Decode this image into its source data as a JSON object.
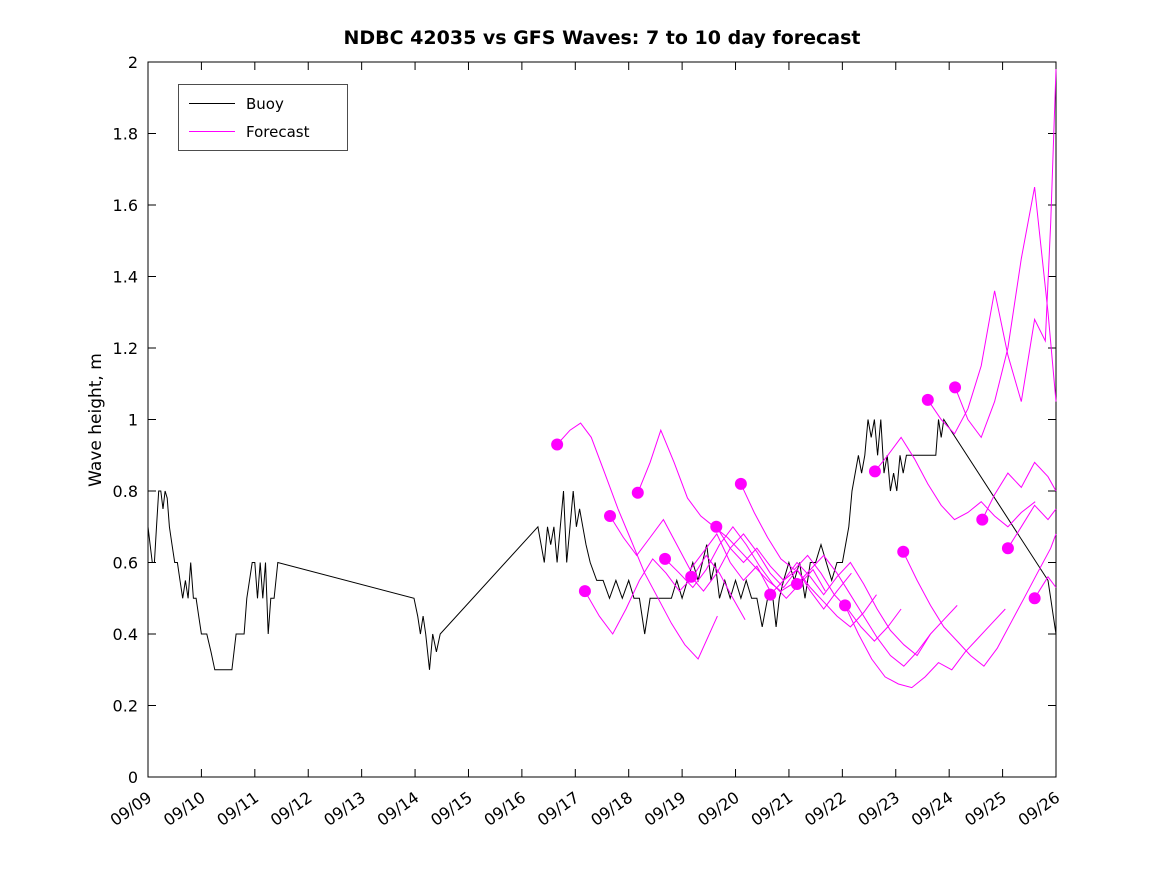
{
  "figure": {
    "background": "#ffffff"
  },
  "chart_data": {
    "type": "line",
    "title": "NDBC 42035 vs GFS Waves: 7 to 10 day forecast",
    "xlabel": "",
    "ylabel": "Wave height, m",
    "ylim": [
      0,
      2
    ],
    "xlim_days": [
      0,
      17
    ],
    "grid": false,
    "x_tick_labels": [
      "09/09",
      "09/10",
      "09/11",
      "09/12",
      "09/13",
      "09/14",
      "09/15",
      "09/16",
      "09/17",
      "09/18",
      "09/19",
      "09/20",
      "09/21",
      "09/22",
      "09/23",
      "09/24",
      "09/25",
      "09/26"
    ],
    "y_tick_values": [
      0,
      0.2,
      0.4,
      0.6,
      0.8,
      1,
      1.2,
      1.4,
      1.6,
      1.8,
      2
    ],
    "y_tick_labels": [
      "0",
      "0.2",
      "0.4",
      "0.6",
      "0.8",
      "1",
      "1.2",
      "1.4",
      "1.6",
      "1.8",
      "2"
    ],
    "legend": {
      "position": "top-left",
      "entries": [
        {
          "label": "Buoy",
          "color": "#000000"
        },
        {
          "label": "Forecast",
          "color": "#ff00ff"
        }
      ]
    },
    "colors": {
      "buoy": "#000000",
      "forecast": "#ff00ff"
    },
    "marker": "filled-circle",
    "buoy": {
      "name": "Buoy",
      "x": [
        0.0,
        0.04,
        0.08,
        0.12,
        0.16,
        0.2,
        0.24,
        0.28,
        0.32,
        0.36,
        0.4,
        0.45,
        0.5,
        0.55,
        0.6,
        0.65,
        0.7,
        0.75,
        0.8,
        0.85,
        0.9,
        0.95,
        1.0,
        1.05,
        1.1,
        1.18,
        1.25,
        1.35,
        1.45,
        1.57,
        1.65,
        1.72,
        1.8,
        1.85,
        1.9,
        1.95,
        2.0,
        2.05,
        2.1,
        2.15,
        2.2,
        2.25,
        2.3,
        2.36,
        2.43,
        4.98,
        5.05,
        5.1,
        5.15,
        5.2,
        5.27,
        5.33,
        5.4,
        5.47,
        7.3,
        7.36,
        7.42,
        7.48,
        7.54,
        7.6,
        7.66,
        7.72,
        7.78,
        7.84,
        7.9,
        7.96,
        8.02,
        8.08,
        8.14,
        8.2,
        8.28,
        8.4,
        8.52,
        8.64,
        8.76,
        8.88,
        9.0,
        9.1,
        9.2,
        9.3,
        9.4,
        9.5,
        9.6,
        9.7,
        9.8,
        9.9,
        10.0,
        10.1,
        10.2,
        10.3,
        10.38,
        10.46,
        10.54,
        10.62,
        10.7,
        10.8,
        10.9,
        11.0,
        11.1,
        11.2,
        11.3,
        11.4,
        11.5,
        11.6,
        11.7,
        11.76,
        11.82,
        11.9,
        12.0,
        12.1,
        12.2,
        12.3,
        12.4,
        12.5,
        12.6,
        12.7,
        12.8,
        12.9,
        13.0,
        13.06,
        13.12,
        13.18,
        13.24,
        13.3,
        13.36,
        13.42,
        13.48,
        13.54,
        13.6,
        13.66,
        13.72,
        13.78,
        13.84,
        13.9,
        13.96,
        14.02,
        14.08,
        14.14,
        14.2,
        14.4,
        14.6,
        14.75,
        14.8,
        14.85,
        14.9,
        16.85,
        16.9,
        16.95,
        17.0
      ],
      "y": [
        0.7,
        0.65,
        0.6,
        0.6,
        0.7,
        0.8,
        0.8,
        0.75,
        0.8,
        0.78,
        0.7,
        0.65,
        0.6,
        0.6,
        0.55,
        0.5,
        0.55,
        0.5,
        0.6,
        0.5,
        0.5,
        0.45,
        0.4,
        0.4,
        0.4,
        0.35,
        0.3,
        0.3,
        0.3,
        0.3,
        0.4,
        0.4,
        0.4,
        0.5,
        0.55,
        0.6,
        0.6,
        0.5,
        0.6,
        0.5,
        0.6,
        0.4,
        0.5,
        0.5,
        0.6,
        0.5,
        0.45,
        0.4,
        0.45,
        0.4,
        0.3,
        0.4,
        0.35,
        0.4,
        0.7,
        0.65,
        0.6,
        0.7,
        0.65,
        0.7,
        0.6,
        0.7,
        0.8,
        0.6,
        0.7,
        0.8,
        0.7,
        0.75,
        0.7,
        0.65,
        0.6,
        0.55,
        0.55,
        0.5,
        0.55,
        0.5,
        0.55,
        0.5,
        0.5,
        0.4,
        0.5,
        0.5,
        0.5,
        0.5,
        0.5,
        0.55,
        0.5,
        0.55,
        0.6,
        0.55,
        0.6,
        0.65,
        0.55,
        0.6,
        0.5,
        0.55,
        0.5,
        0.55,
        0.5,
        0.55,
        0.5,
        0.5,
        0.42,
        0.5,
        0.5,
        0.42,
        0.5,
        0.55,
        0.6,
        0.55,
        0.6,
        0.5,
        0.6,
        0.6,
        0.65,
        0.6,
        0.55,
        0.6,
        0.6,
        0.65,
        0.7,
        0.8,
        0.85,
        0.9,
        0.85,
        0.9,
        1.0,
        0.95,
        1.0,
        0.9,
        1.0,
        0.85,
        0.9,
        0.8,
        0.85,
        0.8,
        0.9,
        0.85,
        0.9,
        0.9,
        0.9,
        0.9,
        1.0,
        0.95,
        1.0,
        0.55,
        0.5,
        0.45,
        0.4
      ]
    },
    "forecast": {
      "name": "Forecast",
      "runs": [
        {
          "x": [
            7.66,
            7.9,
            8.1,
            8.3,
            8.55,
            8.8,
            9.05,
            9.3,
            9.55,
            9.8,
            10.05,
            10.3,
            10.66
          ],
          "y": [
            0.93,
            0.97,
            0.99,
            0.95,
            0.85,
            0.75,
            0.66,
            0.57,
            0.5,
            0.43,
            0.37,
            0.33,
            0.45
          ]
        },
        {
          "x": [
            8.18,
            8.45,
            8.7,
            8.95,
            9.2,
            9.45,
            9.7,
            9.95,
            10.2,
            10.45,
            10.7,
            10.95,
            11.18
          ],
          "y": [
            0.52,
            0.45,
            0.4,
            0.47,
            0.55,
            0.61,
            0.57,
            0.52,
            0.56,
            0.62,
            0.57,
            0.5,
            0.44
          ]
        },
        {
          "x": [
            8.65,
            8.9,
            9.15,
            9.4,
            9.65,
            9.9,
            10.15,
            10.4,
            10.65,
            10.9,
            11.15,
            11.4,
            11.65
          ],
          "y": [
            0.73,
            0.67,
            0.62,
            0.67,
            0.72,
            0.65,
            0.58,
            0.63,
            0.68,
            0.6,
            0.55,
            0.59,
            0.52
          ]
        },
        {
          "x": [
            9.17,
            9.4,
            9.6,
            9.85,
            10.1,
            10.35,
            10.6,
            10.85,
            11.1,
            11.35,
            11.6,
            11.85,
            12.17
          ],
          "y": [
            0.795,
            0.88,
            0.97,
            0.88,
            0.78,
            0.73,
            0.7,
            0.67,
            0.63,
            0.59,
            0.55,
            0.52,
            0.55
          ]
        },
        {
          "x": [
            9.68,
            9.95,
            10.2,
            10.45,
            10.7,
            10.95,
            11.2,
            11.45,
            11.7,
            11.95,
            12.2,
            12.45,
            12.68
          ],
          "y": [
            0.61,
            0.57,
            0.53,
            0.58,
            0.65,
            0.7,
            0.65,
            0.59,
            0.54,
            0.5,
            0.54,
            0.58,
            0.52
          ]
        },
        {
          "x": [
            10.17,
            10.4,
            10.65,
            10.9,
            11.15,
            11.4,
            11.65,
            11.9,
            12.15,
            12.4,
            12.65,
            12.9,
            13.17
          ],
          "y": [
            0.56,
            0.52,
            0.57,
            0.64,
            0.68,
            0.63,
            0.57,
            0.53,
            0.58,
            0.52,
            0.47,
            0.52,
            0.57
          ]
        },
        {
          "x": [
            10.64,
            10.9,
            11.15,
            11.4,
            11.65,
            11.9,
            12.15,
            12.4,
            12.65,
            12.9,
            13.15,
            13.4,
            13.64
          ],
          "y": [
            0.7,
            0.64,
            0.6,
            0.64,
            0.59,
            0.55,
            0.58,
            0.53,
            0.49,
            0.45,
            0.42,
            0.46,
            0.51
          ]
        },
        {
          "x": [
            11.1,
            11.35,
            11.6,
            11.85,
            12.1,
            12.35,
            12.6,
            12.85,
            13.1,
            13.35,
            13.6,
            13.85,
            14.1
          ],
          "y": [
            0.82,
            0.74,
            0.67,
            0.61,
            0.58,
            0.62,
            0.57,
            0.51,
            0.47,
            0.42,
            0.38,
            0.42,
            0.47
          ]
        },
        {
          "x": [
            11.65,
            11.9,
            12.15,
            12.4,
            12.65,
            12.9,
            13.15,
            13.4,
            13.65,
            13.9,
            14.15,
            14.4,
            14.65
          ],
          "y": [
            0.51,
            0.55,
            0.6,
            0.56,
            0.51,
            0.56,
            0.6,
            0.54,
            0.47,
            0.41,
            0.37,
            0.34,
            0.4
          ]
        },
        {
          "x": [
            12.15,
            12.4,
            12.65,
            12.9,
            13.15,
            13.4,
            13.65,
            13.9,
            14.15,
            14.4,
            14.65,
            14.9,
            15.15
          ],
          "y": [
            0.54,
            0.58,
            0.62,
            0.57,
            0.51,
            0.45,
            0.39,
            0.34,
            0.31,
            0.35,
            0.4,
            0.44,
            0.48
          ]
        },
        {
          "x": [
            13.05,
            13.3,
            13.55,
            13.8,
            14.05,
            14.3,
            14.55,
            14.8,
            15.05,
            15.3,
            15.55,
            15.8,
            16.05
          ],
          "y": [
            0.48,
            0.4,
            0.33,
            0.28,
            0.26,
            0.25,
            0.28,
            0.32,
            0.3,
            0.35,
            0.39,
            0.43,
            0.47
          ]
        },
        {
          "x": [
            13.61,
            13.85,
            14.1,
            14.35,
            14.6,
            14.85,
            15.1,
            15.35,
            15.6,
            15.85,
            16.1,
            16.35,
            16.61
          ],
          "y": [
            0.855,
            0.9,
            0.95,
            0.89,
            0.82,
            0.76,
            0.72,
            0.74,
            0.77,
            0.73,
            0.7,
            0.74,
            0.77
          ]
        },
        {
          "x": [
            14.14,
            14.4,
            14.65,
            14.9,
            15.15,
            15.4,
            15.65,
            15.9,
            16.15,
            16.4,
            16.65,
            16.9,
            17.0
          ],
          "y": [
            0.63,
            0.55,
            0.48,
            0.42,
            0.38,
            0.34,
            0.31,
            0.36,
            0.43,
            0.5,
            0.57,
            0.64,
            0.68
          ]
        },
        {
          "x": [
            14.6,
            14.85,
            15.1,
            15.35,
            15.6,
            15.85,
            16.1,
            16.35,
            16.6,
            16.8,
            16.9,
            17.0
          ],
          "y": [
            1.055,
            1.0,
            0.96,
            1.03,
            1.15,
            1.36,
            1.18,
            1.05,
            1.28,
            1.22,
            1.55,
            1.98
          ]
        },
        {
          "x": [
            15.11,
            15.35,
            15.6,
            15.85,
            16.1,
            16.35,
            16.6,
            16.85,
            17.0
          ],
          "y": [
            1.09,
            1.0,
            0.95,
            1.05,
            1.2,
            1.45,
            1.65,
            1.3,
            1.05
          ]
        },
        {
          "x": [
            15.62,
            15.85,
            16.1,
            16.35,
            16.6,
            16.85,
            17.0
          ],
          "y": [
            0.72,
            0.79,
            0.85,
            0.81,
            0.88,
            0.84,
            0.8
          ]
        },
        {
          "x": [
            16.1,
            16.35,
            16.6,
            16.85,
            17.0
          ],
          "y": [
            0.64,
            0.7,
            0.76,
            0.72,
            0.75
          ]
        },
        {
          "x": [
            16.6,
            16.85,
            17.0
          ],
          "y": [
            0.5,
            0.56,
            0.53
          ]
        }
      ]
    }
  }
}
